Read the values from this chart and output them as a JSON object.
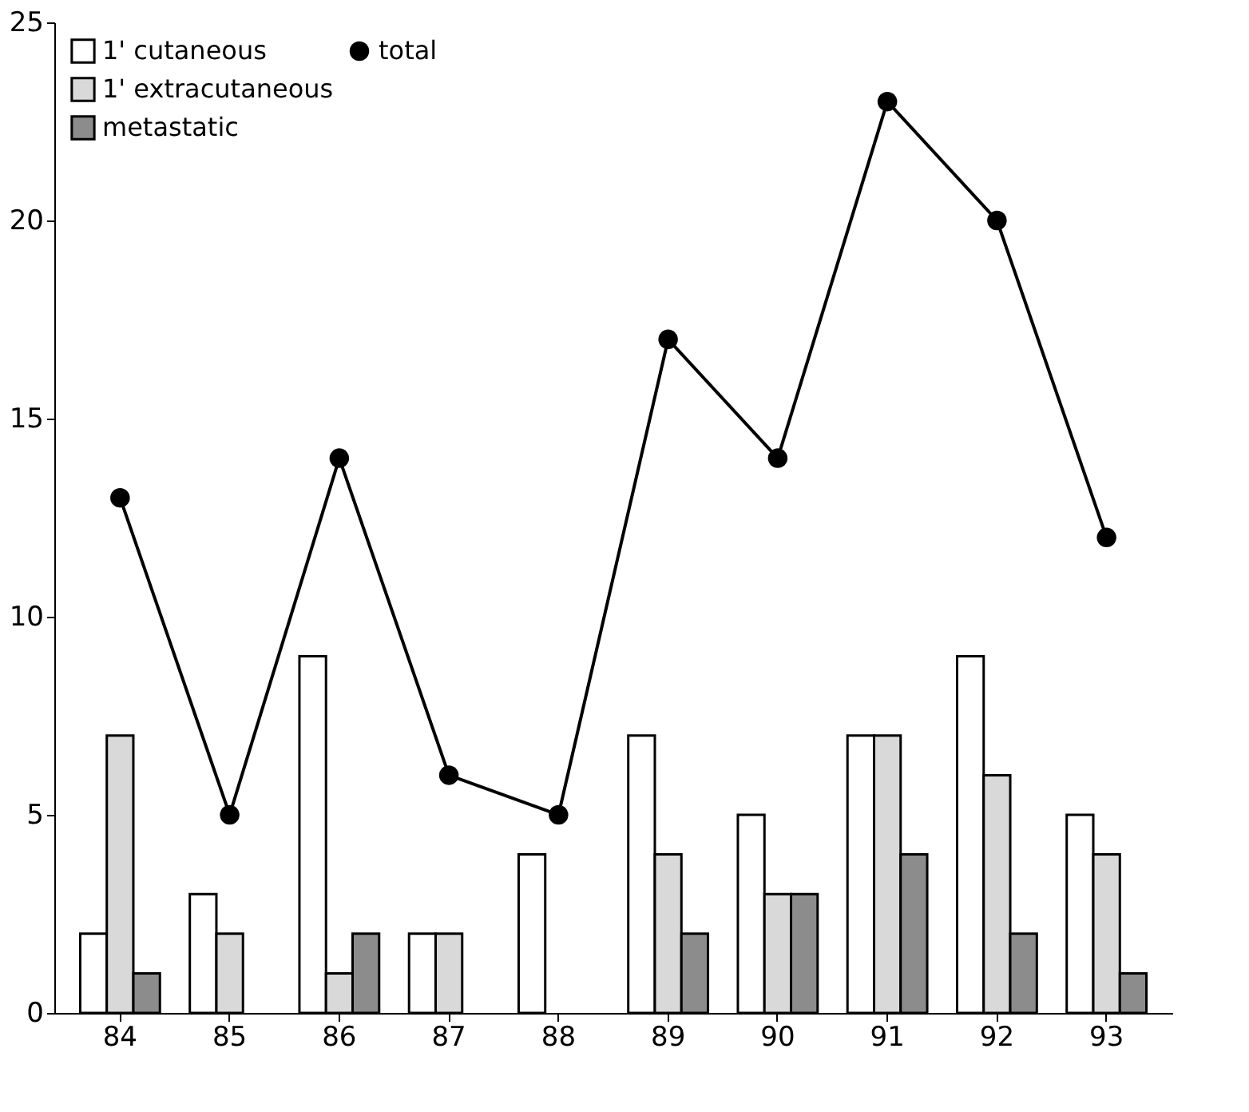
{
  "chart_data": {
    "type": "bar",
    "categories": [
      "84",
      "85",
      "86",
      "87",
      "88",
      "89",
      "90",
      "91",
      "92",
      "93"
    ],
    "series": [
      {
        "name": "1' cutaneous",
        "color": "#ffffff",
        "values": [
          2,
          3,
          9,
          2,
          4,
          7,
          5,
          7,
          9,
          5
        ]
      },
      {
        "name": "1' extracutaneous",
        "color": "#d9d9d9",
        "values": [
          7,
          2,
          1,
          2,
          null,
          4,
          3,
          7,
          6,
          4
        ]
      },
      {
        "name": "metastatic",
        "color": "#8c8c8c",
        "values": [
          1,
          null,
          2,
          null,
          null,
          2,
          3,
          4,
          2,
          1
        ]
      },
      {
        "name": "total",
        "color": "#000000",
        "type": "line",
        "marker": "circle",
        "line_style": "solid",
        "values": [
          13,
          5,
          14,
          6,
          5,
          17,
          14,
          23,
          20,
          12
        ]
      }
    ],
    "ylim": [
      0,
      25
    ],
    "yticks": [
      0,
      5,
      10,
      15,
      20,
      25
    ],
    "grid": false,
    "legend": "top left"
  }
}
